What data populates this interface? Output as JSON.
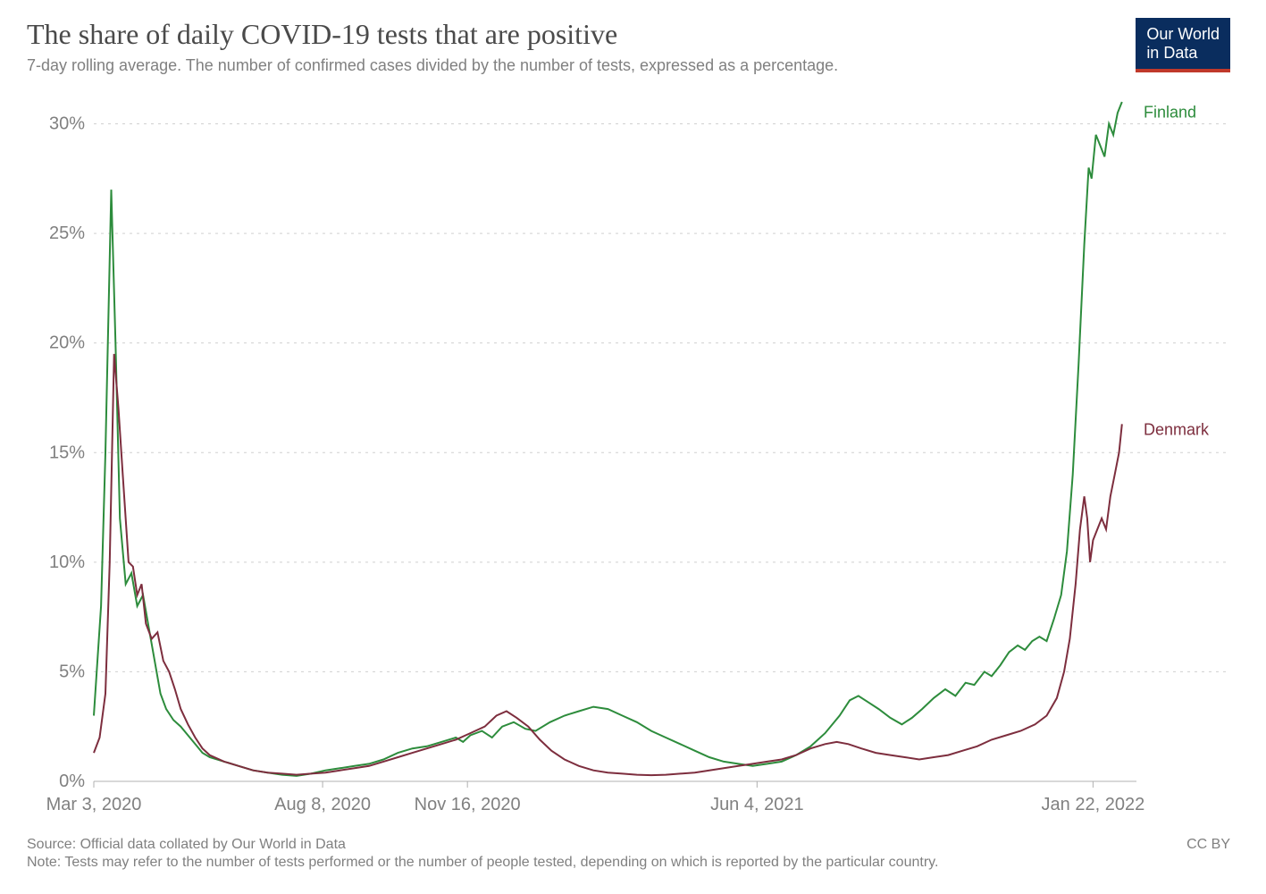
{
  "header": {
    "title": "The share of daily COVID-19 tests that are positive",
    "subtitle": "7-day rolling average. The number of confirmed cases divided by the number of tests, expressed as a percentage.",
    "logo_line1": "Our World",
    "logo_line2": "in Data"
  },
  "chart": {
    "type": "line",
    "background_color": "#ffffff",
    "grid_color": "#d0d0d0",
    "axis_color": "#b0b0b0",
    "text_color": "#808080",
    "title_fontsize": 32,
    "subtitle_fontsize": 18,
    "tick_fontsize": 20,
    "label_fontsize": 18,
    "line_width": 2,
    "x_domain_days": [
      0,
      720
    ],
    "y_domain": [
      0,
      31
    ],
    "y_ticks": [
      {
        "v": 0,
        "label": "0%"
      },
      {
        "v": 5,
        "label": "5%"
      },
      {
        "v": 10,
        "label": "10%"
      },
      {
        "v": 15,
        "label": "15%"
      },
      {
        "v": 20,
        "label": "20%"
      },
      {
        "v": 25,
        "label": "25%"
      },
      {
        "v": 30,
        "label": "30%"
      }
    ],
    "x_ticks": [
      {
        "d": 0,
        "label": "Mar 3, 2020"
      },
      {
        "d": 158,
        "label": "Aug 8, 2020"
      },
      {
        "d": 258,
        "label": "Nov 16, 2020"
      },
      {
        "d": 458,
        "label": "Jun 4, 2021"
      },
      {
        "d": 690,
        "label": "Jan 22, 2022"
      }
    ],
    "series": [
      {
        "name": "Finland",
        "color": "#2d8c3c",
        "label_y": 30.5,
        "data": [
          [
            0,
            3.0
          ],
          [
            5,
            8.0
          ],
          [
            8,
            15.0
          ],
          [
            12,
            27.0
          ],
          [
            15,
            20.0
          ],
          [
            18,
            12.0
          ],
          [
            22,
            9.0
          ],
          [
            26,
            9.5
          ],
          [
            30,
            8.0
          ],
          [
            34,
            8.5
          ],
          [
            38,
            7.0
          ],
          [
            42,
            5.5
          ],
          [
            46,
            4.0
          ],
          [
            50,
            3.3
          ],
          [
            55,
            2.8
          ],
          [
            60,
            2.5
          ],
          [
            65,
            2.1
          ],
          [
            70,
            1.7
          ],
          [
            75,
            1.3
          ],
          [
            80,
            1.1
          ],
          [
            90,
            0.9
          ],
          [
            100,
            0.7
          ],
          [
            110,
            0.5
          ],
          [
            120,
            0.4
          ],
          [
            130,
            0.3
          ],
          [
            140,
            0.25
          ],
          [
            150,
            0.35
          ],
          [
            160,
            0.5
          ],
          [
            170,
            0.6
          ],
          [
            180,
            0.7
          ],
          [
            190,
            0.8
          ],
          [
            200,
            1.0
          ],
          [
            210,
            1.3
          ],
          [
            220,
            1.5
          ],
          [
            230,
            1.6
          ],
          [
            240,
            1.8
          ],
          [
            250,
            2.0
          ],
          [
            255,
            1.8
          ],
          [
            260,
            2.1
          ],
          [
            268,
            2.3
          ],
          [
            275,
            2.0
          ],
          [
            282,
            2.5
          ],
          [
            290,
            2.7
          ],
          [
            298,
            2.4
          ],
          [
            305,
            2.3
          ],
          [
            315,
            2.7
          ],
          [
            325,
            3.0
          ],
          [
            335,
            3.2
          ],
          [
            345,
            3.4
          ],
          [
            355,
            3.3
          ],
          [
            365,
            3.0
          ],
          [
            375,
            2.7
          ],
          [
            385,
            2.3
          ],
          [
            395,
            2.0
          ],
          [
            405,
            1.7
          ],
          [
            415,
            1.4
          ],
          [
            425,
            1.1
          ],
          [
            435,
            0.9
          ],
          [
            445,
            0.8
          ],
          [
            455,
            0.7
          ],
          [
            465,
            0.8
          ],
          [
            475,
            0.9
          ],
          [
            485,
            1.2
          ],
          [
            495,
            1.6
          ],
          [
            505,
            2.2
          ],
          [
            515,
            3.0
          ],
          [
            522,
            3.7
          ],
          [
            528,
            3.9
          ],
          [
            535,
            3.6
          ],
          [
            542,
            3.3
          ],
          [
            550,
            2.9
          ],
          [
            558,
            2.6
          ],
          [
            565,
            2.9
          ],
          [
            572,
            3.3
          ],
          [
            580,
            3.8
          ],
          [
            588,
            4.2
          ],
          [
            595,
            3.9
          ],
          [
            602,
            4.5
          ],
          [
            608,
            4.4
          ],
          [
            615,
            5.0
          ],
          [
            620,
            4.8
          ],
          [
            626,
            5.3
          ],
          [
            632,
            5.9
          ],
          [
            638,
            6.2
          ],
          [
            643,
            6.0
          ],
          [
            648,
            6.4
          ],
          [
            653,
            6.6
          ],
          [
            658,
            6.4
          ],
          [
            663,
            7.4
          ],
          [
            668,
            8.5
          ],
          [
            672,
            10.5
          ],
          [
            676,
            14.0
          ],
          [
            680,
            19.0
          ],
          [
            684,
            24.5
          ],
          [
            687,
            28.0
          ],
          [
            689,
            27.5
          ],
          [
            692,
            29.5
          ],
          [
            695,
            29.0
          ],
          [
            698,
            28.5
          ],
          [
            701,
            30.0
          ],
          [
            704,
            29.5
          ],
          [
            707,
            30.5
          ],
          [
            710,
            31.0
          ]
        ]
      },
      {
        "name": "Denmark",
        "color": "#7d2e3e",
        "label_y": 16.0,
        "data": [
          [
            0,
            1.3
          ],
          [
            4,
            2.0
          ],
          [
            8,
            4.0
          ],
          [
            11,
            10.0
          ],
          [
            14,
            19.5
          ],
          [
            17,
            17.0
          ],
          [
            20,
            14.0
          ],
          [
            24,
            10.0
          ],
          [
            27,
            9.8
          ],
          [
            30,
            8.5
          ],
          [
            33,
            9.0
          ],
          [
            36,
            7.2
          ],
          [
            40,
            6.5
          ],
          [
            44,
            6.8
          ],
          [
            48,
            5.5
          ],
          [
            52,
            5.0
          ],
          [
            56,
            4.2
          ],
          [
            60,
            3.3
          ],
          [
            65,
            2.6
          ],
          [
            70,
            2.0
          ],
          [
            75,
            1.5
          ],
          [
            80,
            1.2
          ],
          [
            90,
            0.9
          ],
          [
            100,
            0.7
          ],
          [
            110,
            0.5
          ],
          [
            120,
            0.4
          ],
          [
            130,
            0.35
          ],
          [
            140,
            0.3
          ],
          [
            150,
            0.35
          ],
          [
            160,
            0.4
          ],
          [
            170,
            0.5
          ],
          [
            180,
            0.6
          ],
          [
            190,
            0.7
          ],
          [
            200,
            0.9
          ],
          [
            210,
            1.1
          ],
          [
            220,
            1.3
          ],
          [
            230,
            1.5
          ],
          [
            240,
            1.7
          ],
          [
            250,
            1.9
          ],
          [
            260,
            2.2
          ],
          [
            270,
            2.5
          ],
          [
            278,
            3.0
          ],
          [
            285,
            3.2
          ],
          [
            292,
            2.9
          ],
          [
            300,
            2.5
          ],
          [
            308,
            1.9
          ],
          [
            316,
            1.4
          ],
          [
            325,
            1.0
          ],
          [
            335,
            0.7
          ],
          [
            345,
            0.5
          ],
          [
            355,
            0.4
          ],
          [
            365,
            0.35
          ],
          [
            375,
            0.3
          ],
          [
            385,
            0.28
          ],
          [
            395,
            0.3
          ],
          [
            405,
            0.35
          ],
          [
            415,
            0.4
          ],
          [
            425,
            0.5
          ],
          [
            435,
            0.6
          ],
          [
            445,
            0.7
          ],
          [
            455,
            0.8
          ],
          [
            465,
            0.9
          ],
          [
            475,
            1.0
          ],
          [
            485,
            1.2
          ],
          [
            495,
            1.5
          ],
          [
            505,
            1.7
          ],
          [
            513,
            1.8
          ],
          [
            521,
            1.7
          ],
          [
            530,
            1.5
          ],
          [
            540,
            1.3
          ],
          [
            550,
            1.2
          ],
          [
            560,
            1.1
          ],
          [
            570,
            1.0
          ],
          [
            580,
            1.1
          ],
          [
            590,
            1.2
          ],
          [
            600,
            1.4
          ],
          [
            610,
            1.6
          ],
          [
            620,
            1.9
          ],
          [
            630,
            2.1
          ],
          [
            640,
            2.3
          ],
          [
            650,
            2.6
          ],
          [
            658,
            3.0
          ],
          [
            665,
            3.8
          ],
          [
            670,
            5.0
          ],
          [
            674,
            6.5
          ],
          [
            678,
            9.0
          ],
          [
            681,
            11.5
          ],
          [
            684,
            13.0
          ],
          [
            686,
            12.0
          ],
          [
            688,
            10.0
          ],
          [
            690,
            11.0
          ],
          [
            693,
            11.5
          ],
          [
            696,
            12.0
          ],
          [
            699,
            11.5
          ],
          [
            702,
            13.0
          ],
          [
            705,
            14.0
          ],
          [
            708,
            15.0
          ],
          [
            710,
            16.3
          ]
        ]
      }
    ]
  },
  "footer": {
    "source": "Source: Official data collated by Our World in Data",
    "note": "Note: Tests may refer to the number of tests performed or the number of people tested, depending on which is reported by the particular country.",
    "license": "CC BY"
  }
}
